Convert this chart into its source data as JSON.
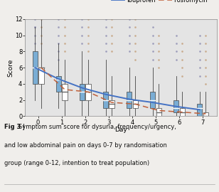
{
  "xlabel": "Day",
  "ylabel": "Score",
  "caption_bold": "Fig 3 | ",
  "caption_rest1": "Symptom sum score for dysuria, frequency/urgency,",
  "caption_line2": "and low abdominal pain on days 0-7 by randomisation",
  "caption_line3": "group (range 0-12, intention to treat population)",
  "days": [
    0,
    1,
    2,
    3,
    4,
    5,
    6,
    7
  ],
  "ylim": [
    0,
    12
  ],
  "yticks": [
    0,
    2,
    4,
    6,
    8,
    10,
    12
  ],
  "background_color": "#e4e4e4",
  "fig_background": "#f0eeeb",
  "ibuprofen_color": "#7aadd4",
  "fosfomycin_color": "#ffffff",
  "ibuprofen_line_color": "#4472c4",
  "fosfomycin_line_color": "#c0603a",
  "dot_ibu_color": "#9898b8",
  "dot_fos_color": "#c8a888",
  "ibuprofen_boxes": [
    {
      "day": 0,
      "q1": 4,
      "median": 6,
      "q3": 8,
      "whislo": 2,
      "whishi": 11
    },
    {
      "day": 1,
      "q1": 3,
      "median": 4.5,
      "q3": 5,
      "whislo": 1,
      "whishi": 9
    },
    {
      "day": 2,
      "q1": 2,
      "median": 3,
      "q3": 4,
      "whislo": 0,
      "whishi": 8
    },
    {
      "day": 3,
      "q1": 1,
      "median": 2,
      "q3": 3,
      "whislo": 0,
      "whishi": 7
    },
    {
      "day": 4,
      "q1": 1,
      "median": 2,
      "q3": 3,
      "whislo": 0,
      "whishi": 6
    },
    {
      "day": 5,
      "q1": 1,
      "median": 2,
      "q3": 3,
      "whislo": 0,
      "whishi": 6
    },
    {
      "day": 6,
      "q1": 0.5,
      "median": 1,
      "q3": 2,
      "whislo": 0,
      "whishi": 5
    },
    {
      "day": 7,
      "q1": 0,
      "median": 1,
      "q3": 1.5,
      "whislo": 0,
      "whishi": 3
    }
  ],
  "fosfomycin_boxes": [
    {
      "day": 0,
      "q1": 4,
      "median": 6,
      "q3": 6,
      "whislo": 1,
      "whishi": 12
    },
    {
      "day": 1,
      "q1": 2,
      "median": 3,
      "q3": 4,
      "whislo": 0,
      "whishi": 7
    },
    {
      "day": 2,
      "q1": 2,
      "median": 3,
      "q3": 4,
      "whislo": 0,
      "whishi": 7
    },
    {
      "day": 3,
      "q1": 1,
      "median": 1.5,
      "q3": 2,
      "whislo": 0,
      "whishi": 5
    },
    {
      "day": 4,
      "q1": 1,
      "median": 1.5,
      "q3": 2,
      "whislo": 0,
      "whishi": 5
    },
    {
      "day": 5,
      "q1": 0,
      "median": 0.5,
      "q3": 1,
      "whislo": 0,
      "whishi": 4
    },
    {
      "day": 6,
      "q1": 0,
      "median": 0.5,
      "q3": 1,
      "whislo": 0,
      "whishi": 3
    },
    {
      "day": 7,
      "q1": 0,
      "median": 0,
      "q3": 0.5,
      "whislo": 0,
      "whishi": 3
    }
  ],
  "ibuprofen_trend": [
    6.0,
    4.6,
    3.5,
    2.7,
    2.1,
    1.7,
    1.2,
    0.8
  ],
  "fosfomycin_trend": [
    6.0,
    3.3,
    3.0,
    1.7,
    1.5,
    0.7,
    0.5,
    0.3
  ],
  "scatter_ibu": [
    [
      0,
      [
        9,
        10,
        11,
        11,
        12
      ]
    ],
    [
      1,
      [
        7,
        8,
        9,
        10,
        11,
        12
      ]
    ],
    [
      2,
      [
        9,
        10,
        11,
        12
      ]
    ],
    [
      3,
      [
        8,
        9,
        10,
        11,
        12
      ]
    ],
    [
      4,
      [
        8,
        9,
        10,
        11,
        12
      ]
    ],
    [
      5,
      [
        7,
        8,
        9,
        10,
        11
      ]
    ],
    [
      6,
      [
        7,
        8,
        9,
        10
      ]
    ],
    [
      7,
      [
        5,
        6,
        7,
        8,
        9,
        10
      ]
    ]
  ],
  "scatter_fos": [
    [
      0,
      [
        9,
        10,
        11,
        12
      ]
    ],
    [
      1,
      [
        8,
        9,
        10,
        11,
        12
      ]
    ],
    [
      2,
      [
        8,
        9,
        10,
        11,
        12
      ]
    ],
    [
      3,
      [
        8,
        9,
        10,
        11,
        12
      ]
    ],
    [
      4,
      [
        7,
        8,
        9,
        10,
        11,
        12
      ]
    ],
    [
      5,
      [
        6,
        7,
        8,
        9,
        10
      ]
    ],
    [
      6,
      [
        5,
        6,
        7,
        8,
        9
      ]
    ],
    [
      7,
      [
        4,
        5,
        6,
        7,
        8,
        9,
        10
      ]
    ]
  ]
}
